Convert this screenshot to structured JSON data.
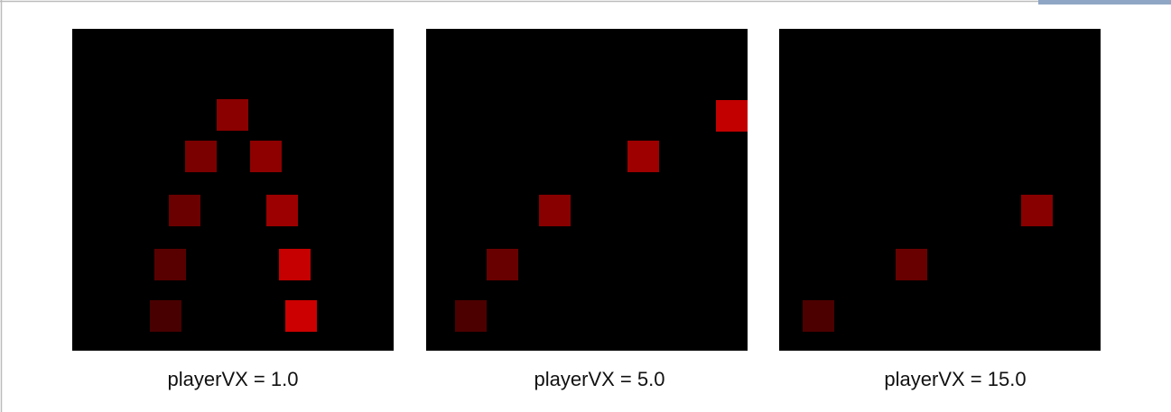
{
  "panels": [
    {
      "caption": "playerVX = 1.0"
    },
    {
      "caption": "playerVX = 5.0"
    },
    {
      "caption": "playerVX = 15.0"
    }
  ]
}
